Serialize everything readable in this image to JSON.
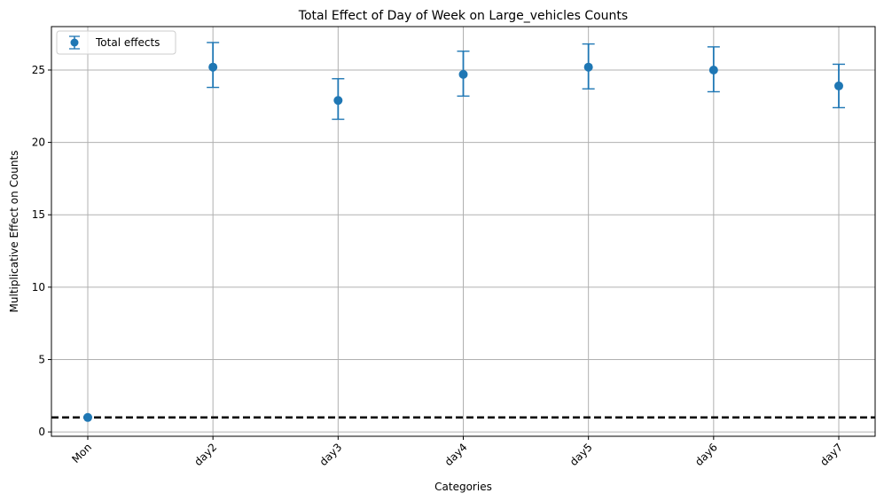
{
  "chart_data": {
    "type": "scatter",
    "title": "Total Effect of Day of Week on Large_vehicles Counts",
    "xlabel": "Categories",
    "ylabel": "Multiplicative Effect on Counts",
    "categories": [
      "Mon",
      "day2",
      "day3",
      "day4",
      "day5",
      "day6",
      "day7"
    ],
    "series": [
      {
        "name": "Total effects",
        "values": [
          1.0,
          25.2,
          22.9,
          24.7,
          25.2,
          25.0,
          23.9
        ],
        "lower": [
          1.0,
          23.8,
          21.6,
          23.2,
          23.7,
          23.5,
          22.4
        ],
        "upper": [
          1.0,
          26.9,
          24.4,
          26.3,
          26.8,
          26.6,
          25.4
        ]
      }
    ],
    "reference_line": {
      "y": 1.0,
      "style": "dashed",
      "color": "#000000"
    },
    "ylim": [
      -0.3,
      28.0
    ],
    "yticks": [
      0,
      5,
      10,
      15,
      20,
      25
    ],
    "grid": true,
    "legend_position": "top-left",
    "colors": {
      "series": "#1f77b4",
      "grid": "#b0b0b0",
      "axes": "#000000"
    }
  }
}
